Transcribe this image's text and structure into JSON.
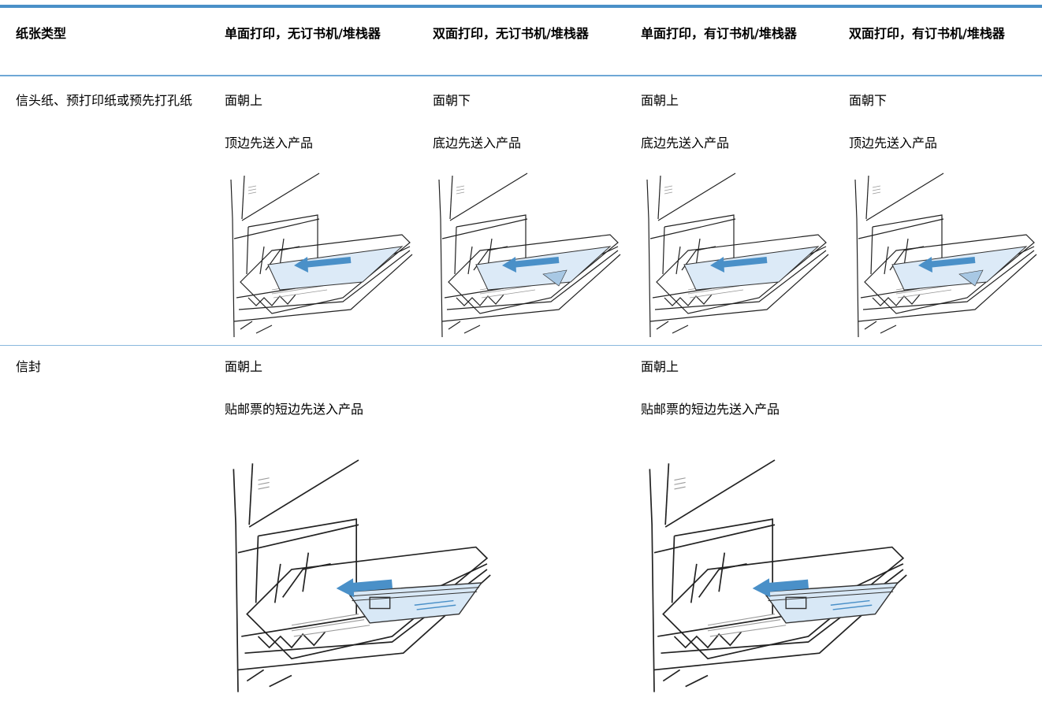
{
  "table": {
    "header": [
      "纸张类型",
      "单面打印，无订书机/堆栈器",
      "双面打印，无订书机/堆栈器",
      "单面打印，有订书机/堆栈器",
      "双面打印，有订书机/堆栈器"
    ],
    "rows": [
      {
        "paper_type": "信头纸、预打印纸或预先打孔纸",
        "cells": [
          {
            "orientation": "面朝上",
            "feed": "顶边先送入产品"
          },
          {
            "orientation": "面朝下",
            "feed": "底边先送入产品"
          },
          {
            "orientation": "面朝上",
            "feed": "底边先送入产品"
          },
          {
            "orientation": "面朝下",
            "feed": "顶边先送入产品"
          }
        ]
      },
      {
        "paper_type": "信封",
        "cells": [
          {
            "orientation": "面朝上",
            "feed": "贴邮票的短边先送入产品"
          },
          null,
          {
            "orientation": "面朝上",
            "feed": "贴邮票的短边先送入产品"
          },
          null
        ]
      }
    ]
  }
}
